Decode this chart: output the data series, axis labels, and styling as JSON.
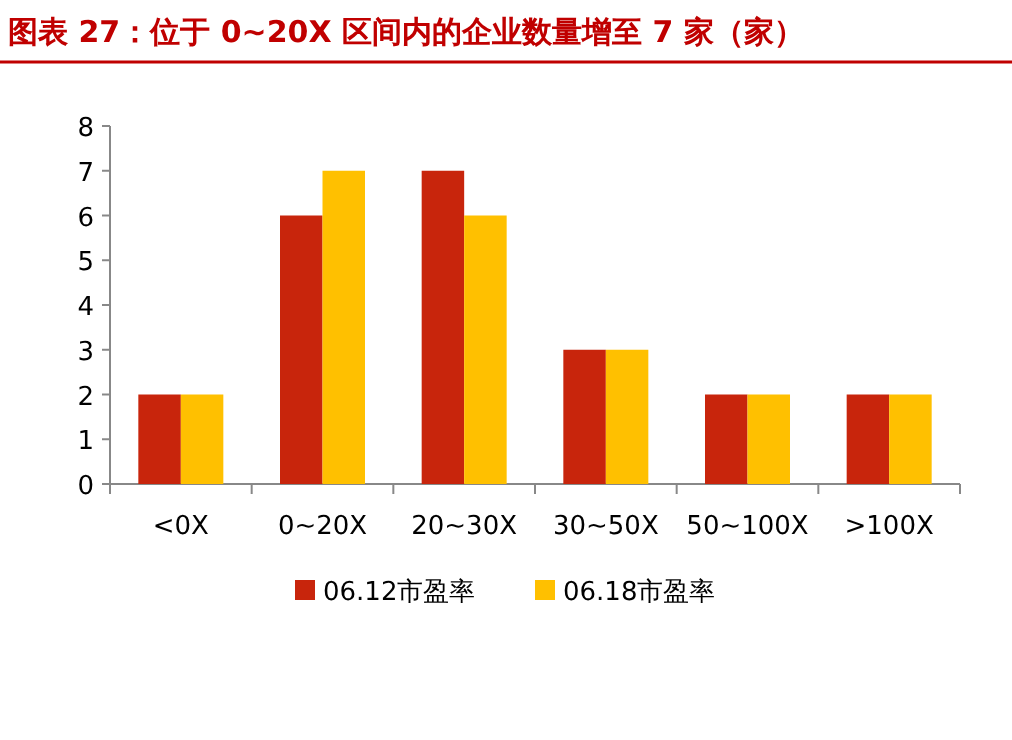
{
  "chart_data": {
    "type": "bar",
    "title": "图表 27：位于 0~20X 区间内的企业数量增至 7 家（家）",
    "categories": [
      "<0X",
      "0~20X",
      "20~30X",
      "30~50X",
      "50~100X",
      ">100X"
    ],
    "series": [
      {
        "name": "06.12市盈率",
        "color": "#c8250c",
        "values": [
          2,
          6,
          7,
          3,
          2,
          2
        ]
      },
      {
        "name": "06.18市盈率",
        "color": "#ffc000",
        "values": [
          2,
          7,
          6,
          3,
          2,
          2
        ]
      }
    ],
    "ylim": [
      0,
      8
    ],
    "yticks": [
      0,
      1,
      2,
      3,
      4,
      5,
      6,
      7,
      8
    ],
    "grid": false,
    "legend": "bottom"
  }
}
